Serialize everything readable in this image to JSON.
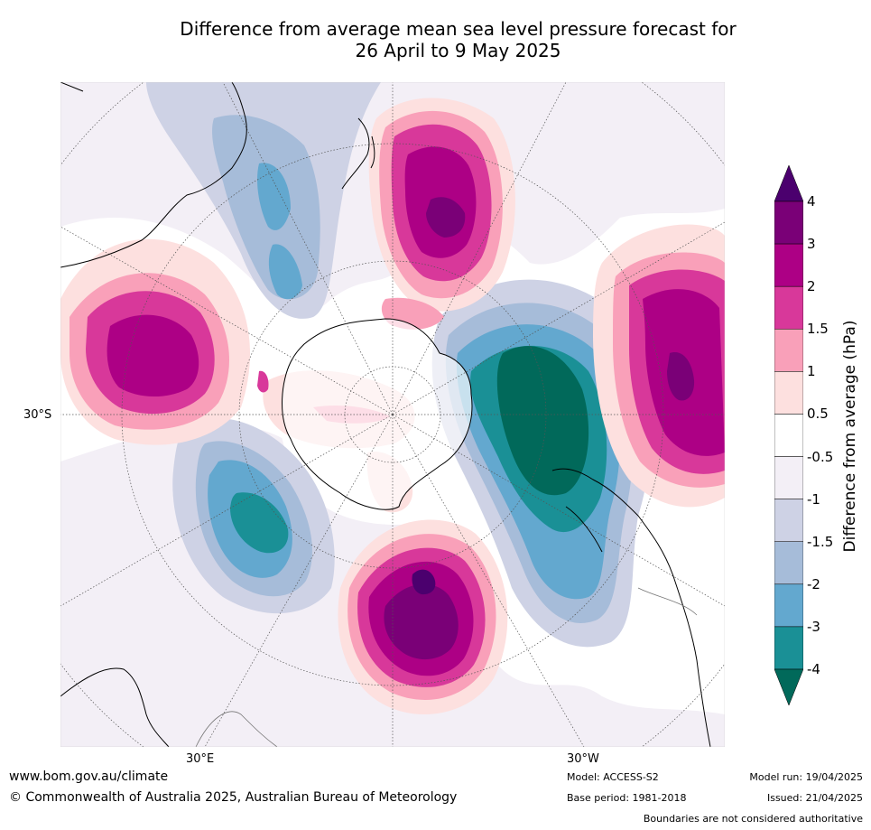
{
  "title": {
    "line1": "Difference from average mean sea level pressure forecast for",
    "line2": "26 April to 9 May 2025"
  },
  "map": {
    "projection": "south-polar-stereographic",
    "labels": {
      "lat": "30°S",
      "lon_east": "30°E",
      "lon_west": "30°W"
    },
    "background_color": "#f3eff6",
    "anomalies": [
      {
        "region": "south-east Pacific / east of Drake Passage",
        "level": "-4"
      },
      {
        "region": "west of Australia / southern Indian Ocean",
        "level": "2"
      },
      {
        "region": "south of New Zealand",
        "level": "3"
      },
      {
        "region": "South Atlantic west of Africa",
        "level": "3"
      },
      {
        "region": "Southern Indian Ocean south of Africa",
        "level": "4"
      },
      {
        "region": "south of South Africa / western Indian Ocean",
        "level": "-3"
      },
      {
        "region": "east of Australia / Tasman Sea",
        "level": "-3"
      }
    ]
  },
  "colorbar": {
    "title": "Difference from average (hPa)",
    "tick_labels": [
      "4",
      "3",
      "2",
      "1.5",
      "1",
      "0.5",
      "-0.5",
      "-1",
      "-1.5",
      "-2",
      "-3",
      "-4"
    ],
    "bands_top_to_bottom": [
      {
        "label": ">4",
        "color": "#4b006e"
      },
      {
        "label": "3 to 4",
        "color": "#7a0077"
      },
      {
        "label": "2 to 3",
        "color": "#ad0085"
      },
      {
        "label": "1.5 to 2",
        "color": "#d8389a"
      },
      {
        "label": "1 to 1.5",
        "color": "#f9a0b9"
      },
      {
        "label": "0.5 to 1",
        "color": "#fde0df"
      },
      {
        "label": "-0.5 to 0.5",
        "color": "#ffffff"
      },
      {
        "label": "-1 to -0.5",
        "color": "#f3eff6"
      },
      {
        "label": "-1.5 to -1",
        "color": "#ced2e5"
      },
      {
        "label": "-2 to -1.5",
        "color": "#a6bcd9"
      },
      {
        "label": "-3 to -2",
        "color": "#63a8cf"
      },
      {
        "label": "-4 to -3",
        "color": "#1a9096"
      },
      {
        "label": "<-4",
        "color": "#01695a"
      }
    ]
  },
  "footer": {
    "website": "www.bom.gov.au/climate",
    "copyright": "© Commonwealth of Australia 2025, Australian Bureau of Meteorology",
    "model": "Model: ACCESS-S2",
    "base_period": "Base period: 1981-2018",
    "model_run": "Model run: 19/04/2025",
    "issued": "Issued: 21/04/2025",
    "disclaimer": "Boundaries are not considered authoritative"
  }
}
